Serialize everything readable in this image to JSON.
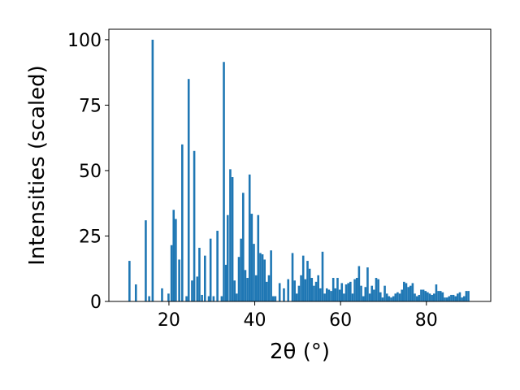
{
  "chart_data": {
    "type": "bar",
    "xlabel": "2θ (°)",
    "ylabel": "Intensities (scaled)",
    "xlim": [
      6,
      95
    ],
    "ylim": [
      0,
      104
    ],
    "xticks": [
      20,
      40,
      60,
      80
    ],
    "yticks": [
      0,
      25,
      50,
      75,
      100
    ],
    "xtick_labels": [
      "20",
      "40",
      "60",
      "80"
    ],
    "ytick_labels": [
      "0",
      "25",
      "50",
      "75",
      "100"
    ],
    "bar_color": "#1f77b4",
    "grid": false,
    "legend": false,
    "x": [
      10.8,
      12.3,
      14.6,
      15.4,
      16.2,
      18.4,
      19.9,
      20.6,
      21.1,
      21.6,
      22.4,
      23.1,
      24.1,
      24.6,
      25.4,
      25.9,
      26.6,
      27.1,
      27.7,
      28.4,
      29.3,
      29.7,
      30.4,
      31.3,
      32.3,
      32.8,
      33.3,
      33.7,
      34.3,
      34.8,
      35.3,
      35.8,
      36.3,
      36.8,
      37.3,
      37.8,
      38.3,
      38.8,
      39.3,
      39.8,
      40.3,
      40.8,
      41.3,
      41.8,
      42.3,
      42.8,
      43.3,
      43.8,
      44.3,
      44.8,
      45.8,
      46.8,
      47.8,
      48.8,
      49.3,
      49.8,
      50.3,
      50.8,
      51.3,
      51.8,
      52.3,
      52.8,
      53.3,
      53.8,
      54.3,
      54.8,
      55.3,
      55.8,
      56.3,
      56.8,
      57.3,
      57.8,
      58.3,
      58.8,
      59.3,
      59.8,
      60.3,
      60.8,
      61.3,
      61.8,
      62.3,
      62.8,
      63.3,
      63.8,
      64.3,
      64.8,
      65.3,
      65.8,
      66.3,
      66.8,
      67.3,
      67.8,
      68.3,
      68.8,
      69.3,
      69.8,
      70.3,
      70.8,
      71.3,
      71.8,
      72.3,
      72.8,
      73.3,
      73.8,
      74.3,
      74.8,
      75.3,
      75.8,
      76.3,
      76.8,
      77.3,
      77.8,
      78.3,
      78.8,
      79.3,
      79.8,
      80.3,
      80.8,
      81.3,
      81.8,
      82.3,
      82.8,
      83.3,
      83.8,
      84.3,
      84.8,
      85.3,
      85.8,
      86.3,
      86.8,
      87.3,
      87.8,
      88.3,
      88.8,
      89.3,
      89.8
    ],
    "values": [
      15.5,
      6.5,
      31,
      2,
      100,
      5,
      3,
      21.5,
      35,
      31.5,
      16,
      60,
      2,
      85,
      8,
      57.5,
      9.5,
      20.5,
      2.5,
      17.5,
      2,
      24,
      2,
      27,
      2,
      91.5,
      14,
      33,
      50.5,
      47.5,
      8,
      3,
      17,
      24,
      41.5,
      12,
      9,
      48.5,
      33.5,
      22,
      10,
      33,
      18.5,
      18,
      16,
      7.5,
      10,
      19.5,
      2,
      2,
      7,
      5,
      8.5,
      18.5,
      8,
      3,
      6,
      10,
      17.5,
      8.5,
      15.5,
      12.5,
      9,
      6,
      7.5,
      10,
      5,
      19,
      3,
      5,
      4.5,
      4,
      9,
      5,
      9,
      4.5,
      7,
      3,
      6.5,
      7,
      7.5,
      3,
      8.5,
      9,
      13.5,
      6,
      2,
      5.5,
      13,
      3,
      6,
      4.5,
      9,
      8.5,
      3.5,
      1.5,
      6,
      3,
      2,
      1.5,
      2,
      3,
      3.5,
      3,
      4.5,
      7.5,
      7,
      5.5,
      6,
      7,
      3,
      2,
      2.5,
      4.5,
      4.5,
      4,
      3.5,
      3,
      2.5,
      3,
      6.5,
      4,
      4,
      3.5,
      1.5,
      1.5,
      2,
      2.5,
      2.5,
      2,
      3,
      3.5,
      1.5,
      2,
      4,
      4
    ]
  }
}
